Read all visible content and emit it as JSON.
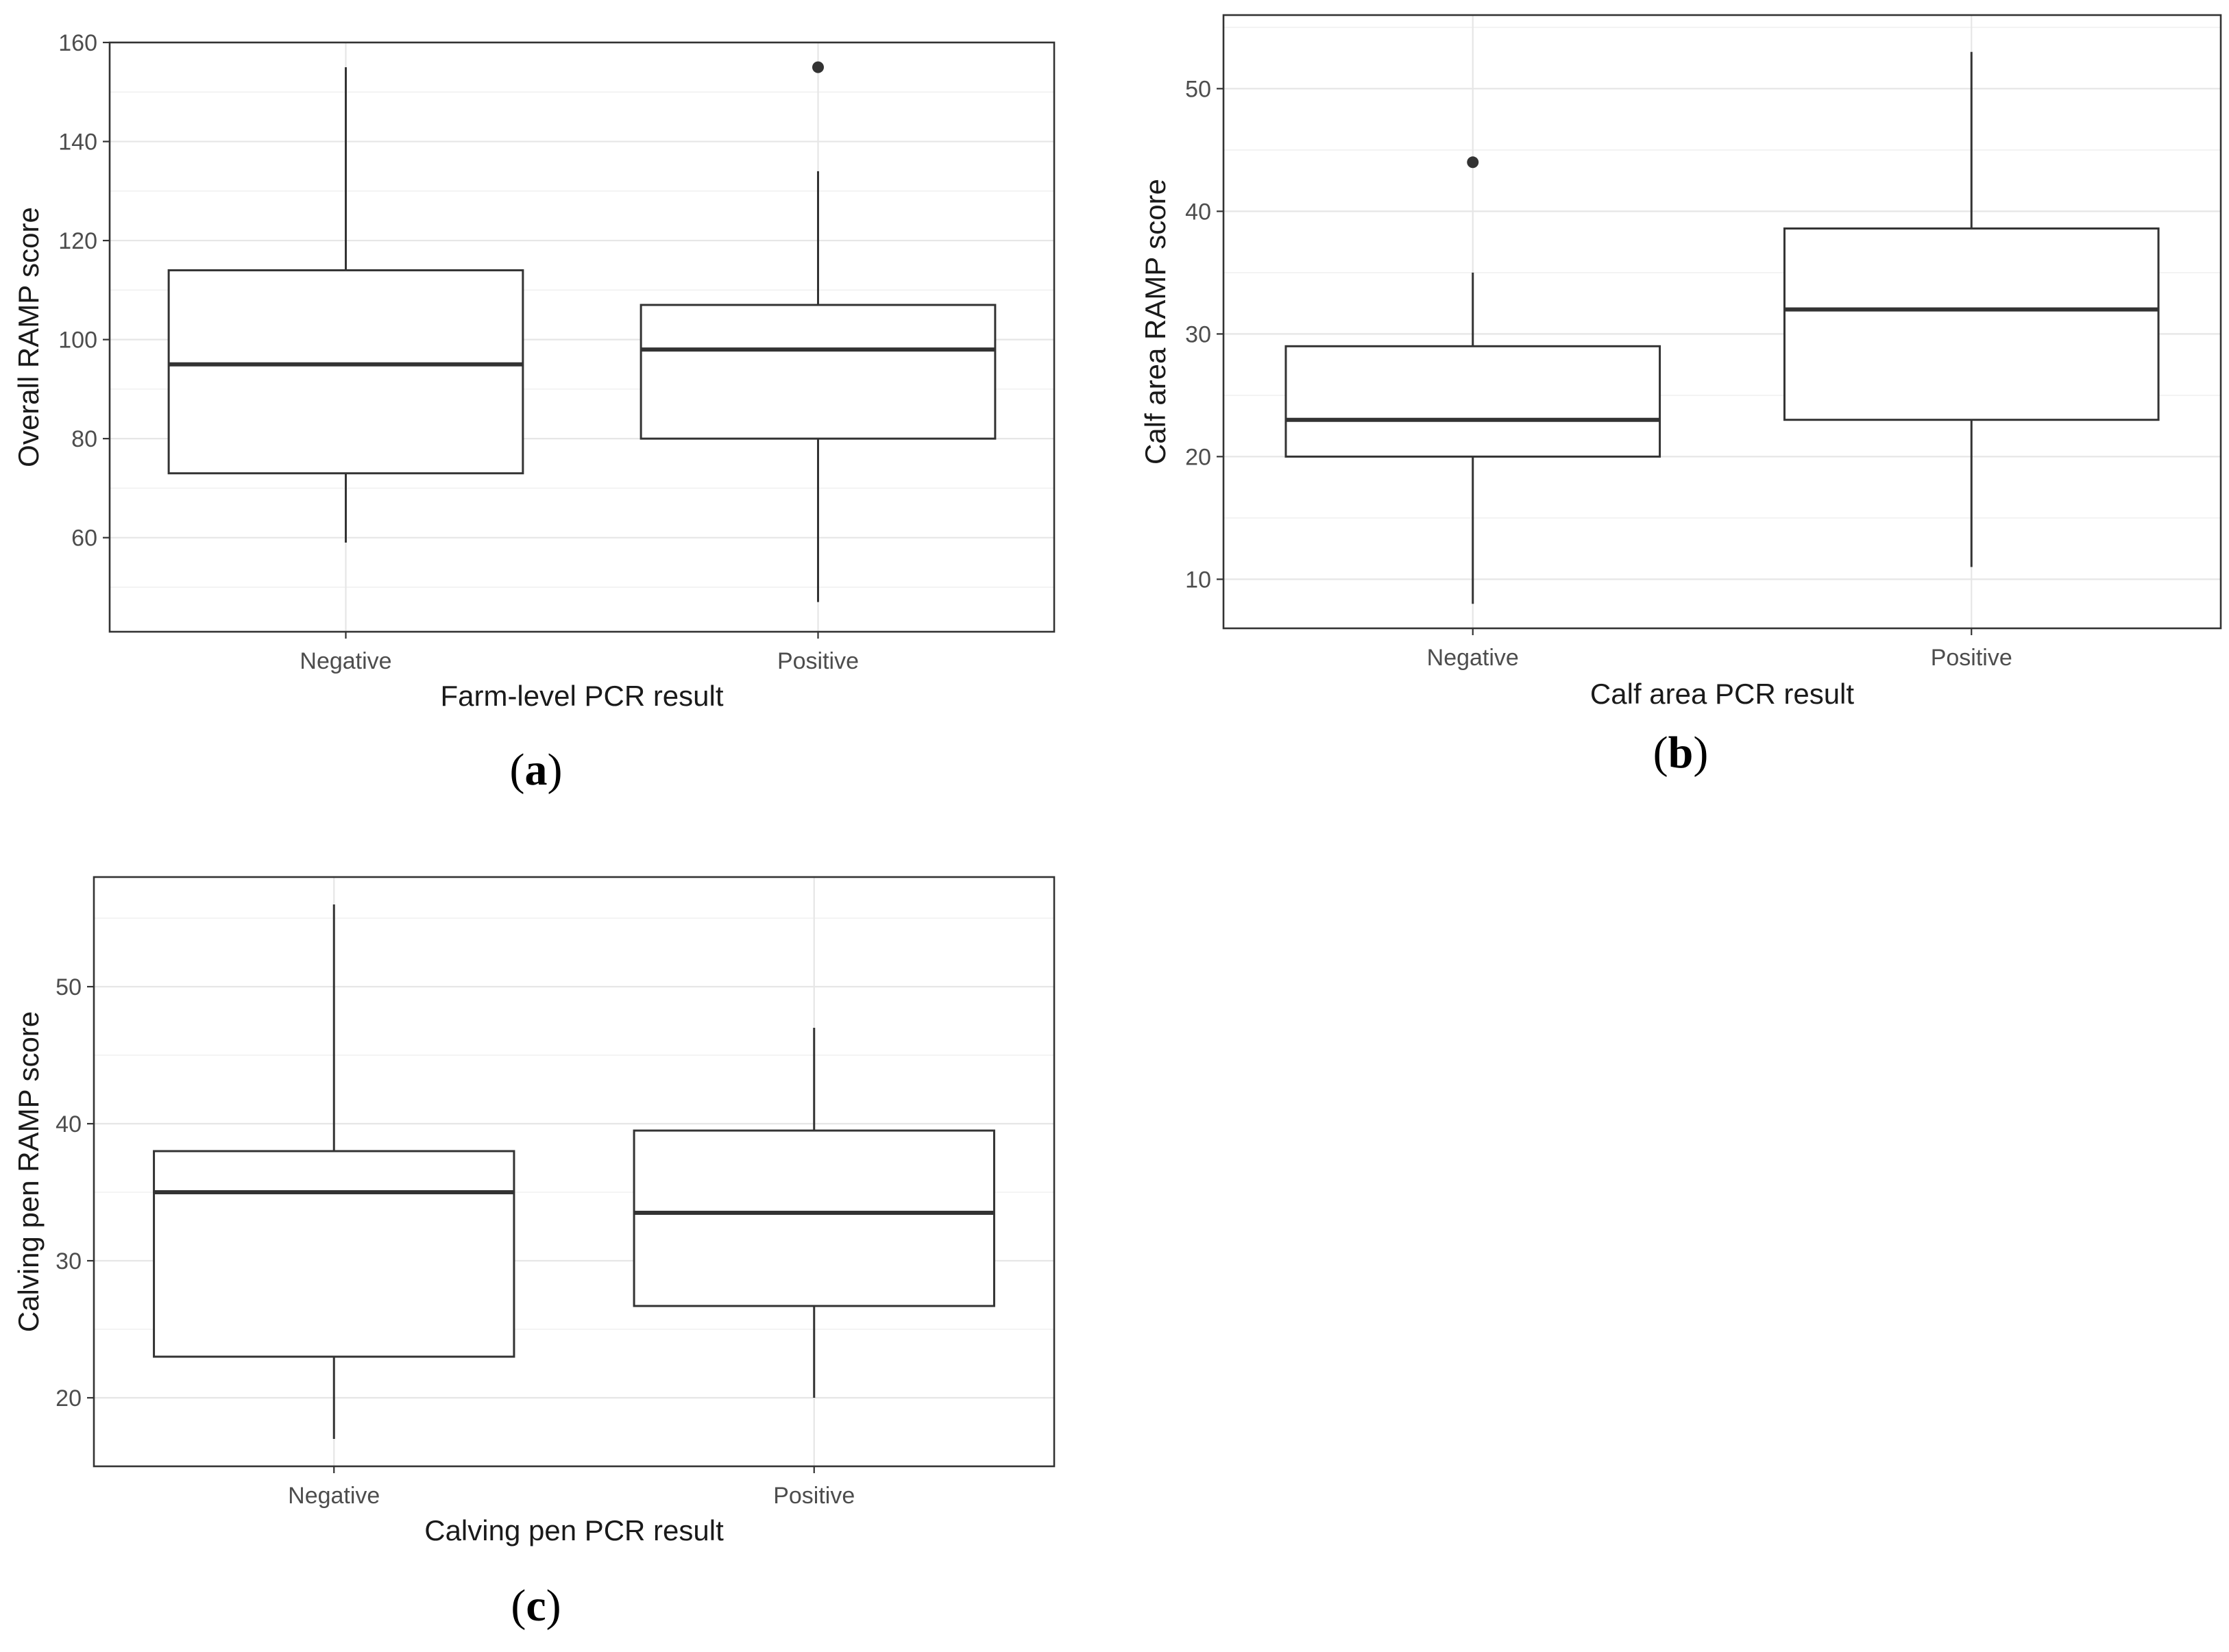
{
  "chart_data": [
    {
      "id": "a",
      "type": "boxplot",
      "panel_label": "a",
      "xlabel": "Farm-level PCR result",
      "ylabel": "Overall RAMP score",
      "categories": [
        "Negative",
        "Positive"
      ],
      "ylim": [
        41,
        160
      ],
      "yticks": [
        60,
        80,
        100,
        120,
        140,
        160
      ],
      "yminor": [
        50,
        70,
        90,
        110,
        130,
        150
      ],
      "grid": true,
      "boxes": [
        {
          "category": "Negative",
          "whisker_low": 59,
          "q1": 73,
          "median": 95,
          "q3": 114,
          "whisker_high": 155,
          "outliers": []
        },
        {
          "category": "Positive",
          "whisker_low": 47,
          "q1": 80,
          "median": 98,
          "q3": 107,
          "whisker_high": 134,
          "outliers": [
            155
          ]
        }
      ]
    },
    {
      "id": "b",
      "type": "boxplot",
      "panel_label": "b",
      "xlabel": "Calf area PCR result",
      "ylabel": "Calf area RAMP score",
      "categories": [
        "Negative",
        "Positive"
      ],
      "ylim": [
        6,
        56
      ],
      "yticks": [
        10,
        20,
        30,
        40,
        50
      ],
      "yminor": [
        15,
        25,
        35,
        45,
        55
      ],
      "grid": true,
      "boxes": [
        {
          "category": "Negative",
          "whisker_low": 8,
          "q1": 20,
          "median": 23,
          "q3": 29,
          "whisker_high": 35,
          "outliers": [
            44
          ]
        },
        {
          "category": "Positive",
          "whisker_low": 11,
          "q1": 23,
          "median": 32,
          "q3": 38.6,
          "whisker_high": 53,
          "outliers": []
        }
      ]
    },
    {
      "id": "c",
      "type": "boxplot",
      "panel_label": "c",
      "xlabel": "Calving pen PCR result",
      "ylabel": "Calving pen RAMP score",
      "categories": [
        "Negative",
        "Positive"
      ],
      "ylim": [
        15,
        58
      ],
      "yticks": [
        20,
        30,
        40,
        50
      ],
      "yminor": [
        25,
        35,
        45,
        55
      ],
      "grid": true,
      "boxes": [
        {
          "category": "Negative",
          "whisker_low": 17,
          "q1": 23,
          "median": 35,
          "q3": 38,
          "whisker_high": 56,
          "outliers": []
        },
        {
          "category": "Positive",
          "whisker_low": 20,
          "q1": 26.7,
          "median": 33.5,
          "q3": 39.5,
          "whisker_high": 47,
          "outliers": []
        }
      ]
    }
  ]
}
